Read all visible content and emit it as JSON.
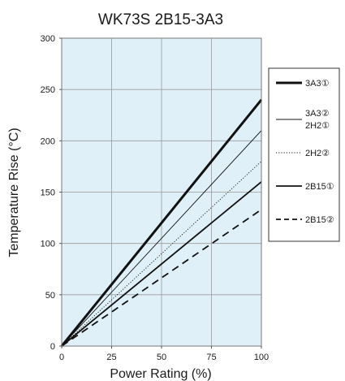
{
  "chart_data": {
    "type": "line",
    "title": "WK73S 2B15-3A3",
    "xlabel": "Power Rating (%)",
    "ylabel": "Temperature Rise (°C)",
    "xlim": [
      0,
      100
    ],
    "ylim": [
      0,
      300
    ],
    "x_ticks": [
      0,
      25,
      50,
      75,
      100
    ],
    "y_ticks": [
      0,
      50,
      100,
      150,
      200,
      250,
      300
    ],
    "grid": true,
    "plot_background": "#dff0f8",
    "grid_color": "#9a9a9a",
    "legend_position": "right",
    "series": [
      {
        "name": "3A3①",
        "x": [
          0,
          100
        ],
        "y": [
          0,
          240
        ],
        "style": "solid",
        "weight": "thick",
        "color": "#111111"
      },
      {
        "name": "3A3②",
        "name2": "2H2①",
        "x": [
          0,
          100
        ],
        "y": [
          0,
          210
        ],
        "style": "solid",
        "weight": "thin",
        "color": "#111111"
      },
      {
        "name": "2H2②",
        "x": [
          0,
          100
        ],
        "y": [
          0,
          180
        ],
        "style": "dotted",
        "weight": "thin",
        "color": "#111111"
      },
      {
        "name": "2B15①",
        "x": [
          0,
          100
        ],
        "y": [
          0,
          160
        ],
        "style": "solid",
        "weight": "medium",
        "color": "#111111"
      },
      {
        "name": "2B15②",
        "x": [
          0,
          100
        ],
        "y": [
          0,
          133
        ],
        "style": "dashed",
        "weight": "medium",
        "color": "#111111"
      }
    ]
  }
}
